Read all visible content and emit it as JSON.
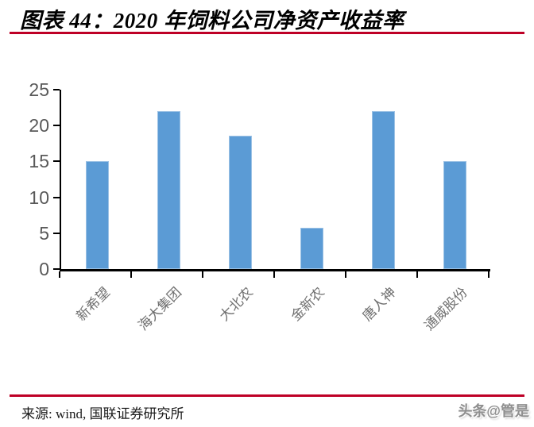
{
  "header": {
    "title": "图表 44：2020 年饲料公司净资产收益率"
  },
  "footer": {
    "source": "来源: wind, 国联证券研究所",
    "watermark": "头条@管是"
  },
  "colors": {
    "accent_red": "#BE0026",
    "bar": "#5B9BD5",
    "bar_edge": "#9CC2E5",
    "axis_line": "#000000",
    "y_tick_text": "#595959",
    "x_tick_text": "#707070"
  },
  "chart_data": {
    "type": "bar",
    "title": "2020 年饲料公司净资产收益率",
    "categories": [
      "新希望",
      "海大集团",
      "大北农",
      "金新农",
      "唐人神",
      "通威股份"
    ],
    "values": [
      15.0,
      22.0,
      18.6,
      5.8,
      22.0,
      15.0
    ],
    "xlabel": "",
    "ylabel": "",
    "ylim": [
      0,
      25
    ],
    "yticks": [
      0,
      5,
      10,
      15,
      20,
      25
    ],
    "grid": false,
    "legend": "none",
    "bar_color": "#5B9BD5",
    "x_label_rotation_deg": -45
  }
}
